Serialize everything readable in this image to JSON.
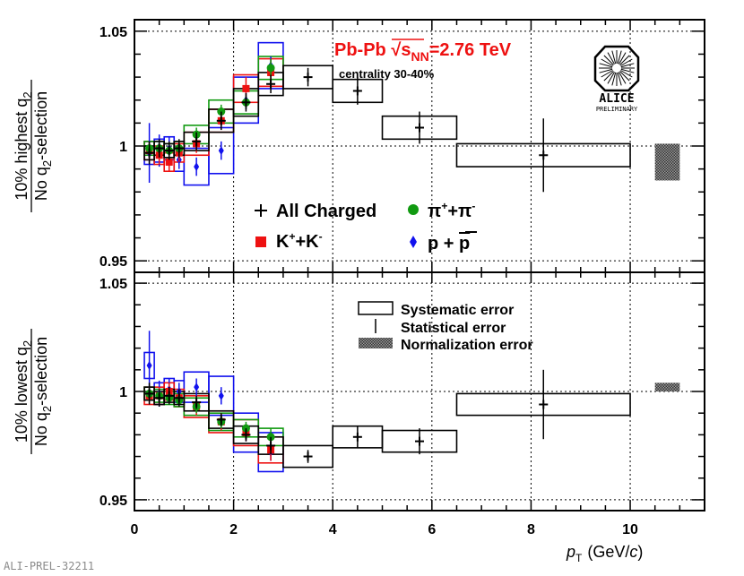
{
  "chart_data": [
    {
      "type": "scatter",
      "panel": "top",
      "ylabel_line1": "10% highest q",
      "ylabel_line1_sub": "2",
      "ylabel_line2": "No q",
      "ylabel_line2_sub": "2",
      "ylabel_line2_rest": "-selection",
      "xlim": [
        0,
        11.5
      ],
      "ylim": [
        0.945,
        1.055
      ],
      "yticks": [
        0.95,
        1,
        1.05
      ],
      "ytick_labels": [
        "0.95",
        "1",
        "1.05"
      ],
      "series": [
        {
          "name": "All Charged",
          "color": "#000000",
          "marker": "cross",
          "x": [
            0.3,
            0.5,
            0.7,
            0.9,
            1.25,
            1.75,
            2.25,
            2.75,
            3.5,
            4.5,
            5.75,
            8.25
          ],
          "y": [
            0.997,
            0.999,
            0.998,
            0.999,
            1.002,
            1.011,
            1.019,
            1.027,
            1.03,
            1.024,
            1.008,
            0.996
          ],
          "stat": [
            0.005,
            0.004,
            0.004,
            0.004,
            0.004,
            0.004,
            0.004,
            0.004,
            0.004,
            0.006,
            0.007,
            0.016
          ],
          "sys": [
            0.003,
            0.003,
            0.003,
            0.003,
            0.004,
            0.005,
            0.006,
            0.005,
            0.005,
            0.005,
            0.005,
            0.005
          ],
          "xw": [
            0.1,
            0.1,
            0.1,
            0.1,
            0.25,
            0.25,
            0.25,
            0.25,
            0.5,
            0.5,
            0.75,
            1.75
          ]
        },
        {
          "name": "π⁺+π⁻",
          "color": "#119a11",
          "marker": "circle",
          "x": [
            0.3,
            0.5,
            0.7,
            0.9,
            1.25,
            1.75,
            2.25,
            2.75
          ],
          "y": [
            0.999,
            0.999,
            0.998,
            0.999,
            1.005,
            1.015,
            1.019,
            1.034
          ],
          "stat": [
            0.003,
            0.003,
            0.003,
            0.003,
            0.003,
            0.003,
            0.003,
            0.004
          ],
          "sys": [
            0.003,
            0.003,
            0.003,
            0.003,
            0.004,
            0.005,
            0.005,
            0.005
          ],
          "xw": [
            0.1,
            0.1,
            0.1,
            0.1,
            0.25,
            0.25,
            0.25,
            0.25
          ]
        },
        {
          "name": "K⁺+K⁻",
          "color": "#ee1111",
          "marker": "square",
          "x": [
            0.3,
            0.5,
            0.7,
            0.9,
            1.25,
            1.75,
            2.25,
            2.75
          ],
          "y": [
            0.998,
            0.996,
            0.993,
            0.997,
            1.001,
            1.011,
            1.025,
            1.032
          ],
          "stat": [
            0.004,
            0.004,
            0.004,
            0.004,
            0.004,
            0.004,
            0.005,
            0.006
          ],
          "sys": [
            0.004,
            0.004,
            0.004,
            0.004,
            0.005,
            0.005,
            0.006,
            0.006
          ],
          "xw": [
            0.1,
            0.1,
            0.1,
            0.1,
            0.25,
            0.25,
            0.25,
            0.25
          ]
        },
        {
          "name": "p + p̄",
          "color": "#1111ee",
          "marker": "diamond",
          "x": [
            0.3,
            0.5,
            0.7,
            0.9,
            1.25,
            1.75,
            2.25,
            2.75
          ],
          "y": [
            0.997,
            0.998,
            0.999,
            0.994,
            0.991,
            0.998,
            1.02,
            1.035
          ],
          "stat": [
            0.013,
            0.007,
            0.005,
            0.004,
            0.004,
            0.004,
            0.004,
            0.004
          ],
          "sys": [
            0.005,
            0.005,
            0.005,
            0.005,
            0.008,
            0.01,
            0.01,
            0.01
          ],
          "xw": [
            0.1,
            0.1,
            0.1,
            0.1,
            0.25,
            0.25,
            0.25,
            0.25
          ]
        }
      ],
      "normalization": {
        "x": 10.75,
        "xw": 0.25,
        "y": 0.993,
        "h": 0.008
      }
    },
    {
      "type": "scatter",
      "panel": "bottom",
      "ylabel_line1": "10% lowest q",
      "ylabel_line1_sub": "2",
      "ylabel_line2": "No q",
      "ylabel_line2_sub": "2",
      "ylabel_line2_rest": "-selection",
      "xlim": [
        0,
        11.5
      ],
      "ylim": [
        0.945,
        1.055
      ],
      "yticks": [
        0.95,
        1,
        1.05
      ],
      "ytick_labels": [
        "0.95",
        "1",
        "1.05"
      ],
      "xticks": [
        0,
        2,
        4,
        6,
        8,
        10
      ],
      "xtick_labels": [
        "0",
        "2",
        "4",
        "6",
        "8",
        "10"
      ],
      "xlabel_main": "p",
      "xlabel_sub": "T",
      "xlabel_unit": "(GeV/",
      "xlabel_c": "c",
      "xlabel_close": ")",
      "series": [
        {
          "name": "All Charged",
          "color": "#000000",
          "marker": "cross",
          "x": [
            0.3,
            0.5,
            0.7,
            0.9,
            1.25,
            1.75,
            2.25,
            2.75,
            3.5,
            4.5,
            5.75,
            8.25
          ],
          "y": [
            0.999,
            0.997,
            0.998,
            0.997,
            0.995,
            0.987,
            0.98,
            0.975,
            0.97,
            0.979,
            0.977,
            0.994
          ],
          "stat": [
            0.005,
            0.004,
            0.004,
            0.004,
            0.003,
            0.003,
            0.003,
            0.004,
            0.003,
            0.005,
            0.006,
            0.016
          ],
          "sys": [
            0.003,
            0.003,
            0.003,
            0.003,
            0.004,
            0.004,
            0.004,
            0.004,
            0.005,
            0.005,
            0.005,
            0.005
          ],
          "xw": [
            0.1,
            0.1,
            0.1,
            0.1,
            0.25,
            0.25,
            0.25,
            0.25,
            0.5,
            0.5,
            0.75,
            1.75
          ]
        },
        {
          "name": "π⁺+π⁻",
          "color": "#119a11",
          "marker": "circle",
          "x": [
            0.3,
            0.5,
            0.7,
            0.9,
            1.25,
            1.75,
            2.25,
            2.75
          ],
          "y": [
            0.999,
            0.998,
            0.997,
            0.996,
            0.993,
            0.986,
            0.983,
            0.979
          ],
          "stat": [
            0.003,
            0.003,
            0.003,
            0.003,
            0.003,
            0.003,
            0.003,
            0.004
          ],
          "sys": [
            0.003,
            0.003,
            0.003,
            0.003,
            0.004,
            0.004,
            0.004,
            0.004
          ],
          "xw": [
            0.1,
            0.1,
            0.1,
            0.1,
            0.25,
            0.25,
            0.25,
            0.25
          ]
        },
        {
          "name": "K⁺+K⁻",
          "color": "#ee1111",
          "marker": "square",
          "x": [
            0.3,
            0.5,
            0.7,
            0.9,
            1.25,
            1.75,
            2.25,
            2.75
          ],
          "y": [
            0.998,
            0.998,
            1.0,
            0.997,
            0.993,
            0.986,
            0.981,
            0.973
          ],
          "stat": [
            0.004,
            0.004,
            0.004,
            0.004,
            0.004,
            0.004,
            0.004,
            0.005
          ],
          "sys": [
            0.004,
            0.004,
            0.004,
            0.004,
            0.005,
            0.005,
            0.006,
            0.006
          ],
          "xw": [
            0.1,
            0.1,
            0.1,
            0.1,
            0.25,
            0.25,
            0.25,
            0.25
          ]
        },
        {
          "name": "p + p̄",
          "color": "#1111ee",
          "marker": "diamond",
          "x": [
            0.3,
            0.5,
            0.7,
            0.9,
            1.25,
            1.75,
            2.25,
            2.75
          ],
          "y": [
            1.012,
            0.999,
            1.001,
            1.0,
            1.002,
            0.998,
            0.981,
            0.972
          ],
          "stat": [
            0.016,
            0.006,
            0.005,
            0.004,
            0.004,
            0.004,
            0.004,
            0.004
          ],
          "sys": [
            0.006,
            0.005,
            0.005,
            0.005,
            0.007,
            0.009,
            0.009,
            0.009
          ],
          "xw": [
            0.1,
            0.1,
            0.1,
            0.1,
            0.25,
            0.25,
            0.25,
            0.25
          ]
        }
      ],
      "normalization": {
        "x": 10.75,
        "xw": 0.25,
        "y": 1.002,
        "h": 0.002
      }
    }
  ],
  "annotations": {
    "title_prefix": "Pb-Pb ",
    "title_sqrt": "√",
    "title_s": "s",
    "title_sub": "NN",
    "title_value": "=2.76 TeV",
    "centrality": "centrality 30-40%",
    "logo_text": "ALICE",
    "logo_sub": "PRELIMINARY",
    "footer": "ALI-PREL-32211"
  },
  "legend_top": {
    "all_charged": "All Charged",
    "pion_base": "π",
    "pion_sup1": "+",
    "pion_mid": "+π",
    "pion_sup2": "-",
    "kaon_base": "K",
    "kaon_sup1": "+",
    "kaon_mid": "+K",
    "kaon_sup2": "-",
    "proton": "p + ",
    "pbar": "p"
  },
  "legend_bottom": {
    "systematic": "Systematic error",
    "statistical": "Statistical error",
    "normalization": "Normalization error"
  },
  "colors": {
    "allcharged": "#000000",
    "pion": "#119a11",
    "kaon": "#ee1111",
    "proton": "#1111ee",
    "title": "#ee1111",
    "footer": "#8a8a8a"
  }
}
